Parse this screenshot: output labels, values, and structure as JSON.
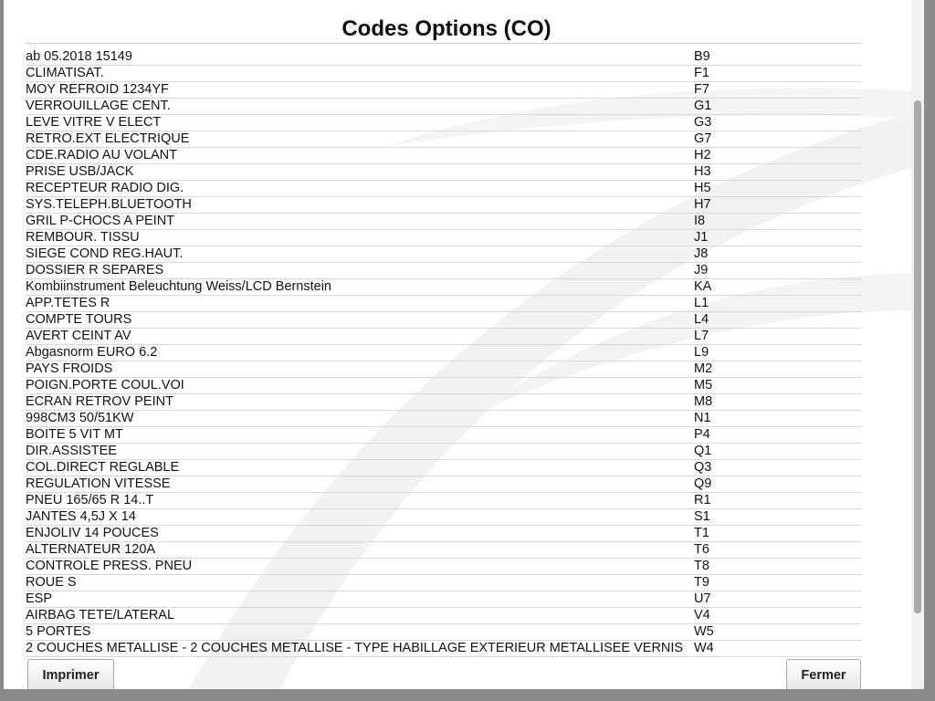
{
  "title": "Codes Options (CO)",
  "rows": [
    [
      "ab 05.2018 15149",
      "B9"
    ],
    [
      "CLIMATISAT.",
      "F1"
    ],
    [
      "MOY REFROID 1234YF",
      "F7"
    ],
    [
      "VERROUILLAGE CENT.",
      "G1"
    ],
    [
      "LEVE VITRE V ELECT",
      "G3"
    ],
    [
      "RETRO.EXT ELECTRIQUE",
      "G7"
    ],
    [
      "CDE.RADIO AU VOLANT",
      "H2"
    ],
    [
      "PRISE USB/JACK",
      "H3"
    ],
    [
      "RECEPTEUR RADIO DIG.",
      "H5"
    ],
    [
      "SYS.TELEPH.BLUETOOTH",
      "H7"
    ],
    [
      "GRIL P-CHOCS A PEINT",
      "I8"
    ],
    [
      "REMBOUR. TISSU",
      "J1"
    ],
    [
      "SIEGE COND REG.HAUT.",
      "J8"
    ],
    [
      "DOSSIER R SEPARES",
      "J9"
    ],
    [
      "Kombiinstrument Beleuchtung Weiss/LCD Bernstein",
      "KA"
    ],
    [
      "APP.TETES R",
      "L1"
    ],
    [
      "COMPTE TOURS",
      "L4"
    ],
    [
      "AVERT CEINT AV",
      "L7"
    ],
    [
      "Abgasnorm EURO 6.2",
      "L9"
    ],
    [
      "PAYS FROIDS",
      "M2"
    ],
    [
      "POIGN.PORTE COUL.VOI",
      "M5"
    ],
    [
      "ECRAN RETROV PEINT",
      "M8"
    ],
    [
      "998CM3 50/51KW",
      "N1"
    ],
    [
      "BOITE 5 VIT MT",
      "P4"
    ],
    [
      "DIR.ASSISTEE",
      "Q1"
    ],
    [
      "COL.DIRECT REGLABLE",
      "Q3"
    ],
    [
      "REGULATION VITESSE",
      "Q9"
    ],
    [
      "PNEU 165/65 R 14..T",
      "R1"
    ],
    [
      "JANTES 4,5J X 14",
      "S1"
    ],
    [
      "ENJOLIV 14 POUCES",
      "T1"
    ],
    [
      "ALTERNATEUR 120A",
      "T6"
    ],
    [
      "CONTROLE PRESS. PNEU",
      "T8"
    ],
    [
      "ROUE S",
      "T9"
    ],
    [
      "ESP",
      "U7"
    ],
    [
      "AIRBAG TETE/LATERAL",
      "V4"
    ],
    [
      "5 PORTES",
      "W5"
    ],
    [
      "2 COUCHES METALLISE - 2 COUCHES METALLISE - TYPE HABILLAGE EXTERIEUR METALLISEE VERNIS",
      "W4"
    ]
  ],
  "buttons": {
    "print": "Imprimer",
    "close": "Fermer"
  }
}
